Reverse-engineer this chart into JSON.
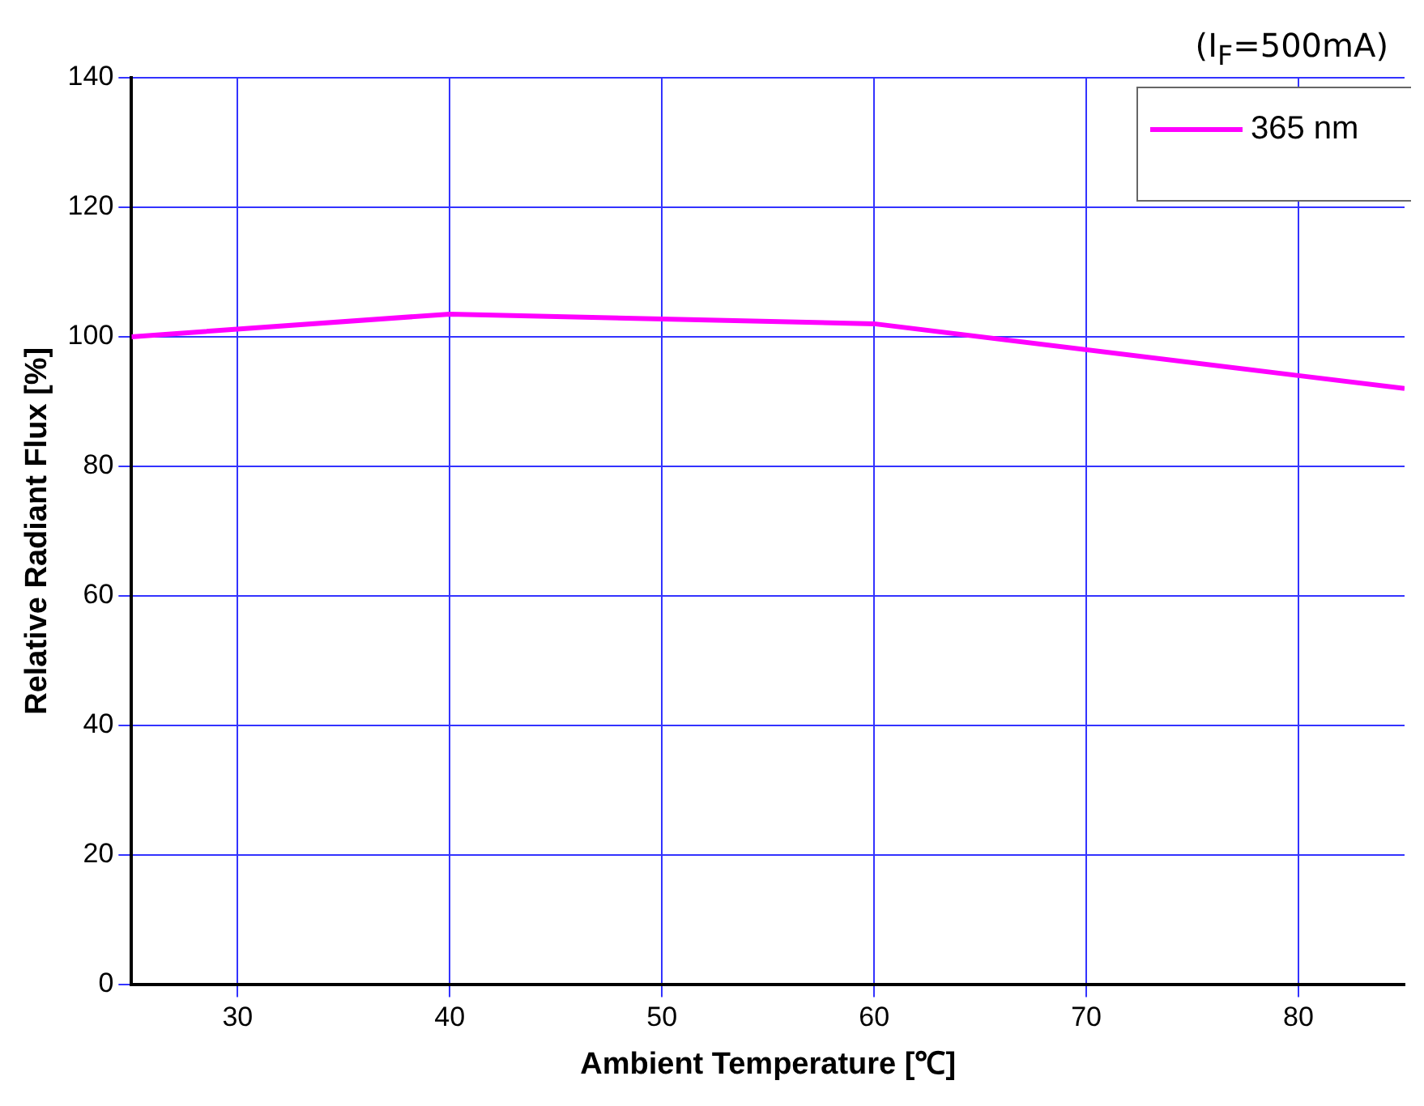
{
  "chart_data": {
    "type": "line",
    "xlabel": "Ambient Temperature [℃]",
    "ylabel": "Relative Radiant Flux [%]",
    "annotations": [
      "(I$_{F}$=500mA)"
    ],
    "series": [
      {
        "name": "365 nm",
        "color": "#ff00ff",
        "x": [
          25,
          40,
          60,
          80,
          85
        ],
        "values": [
          100,
          103.5,
          102,
          94,
          92
        ]
      }
    ],
    "xlim": [
      25,
      85
    ],
    "xticks": [
      30,
      40,
      50,
      60,
      70,
      80
    ],
    "ylim": [
      0,
      140
    ],
    "yticks": [
      0,
      20,
      40,
      60,
      80,
      100,
      120,
      140
    ],
    "grid": true,
    "legend": "top right",
    "marker": "none",
    "line_style": "solid"
  }
}
